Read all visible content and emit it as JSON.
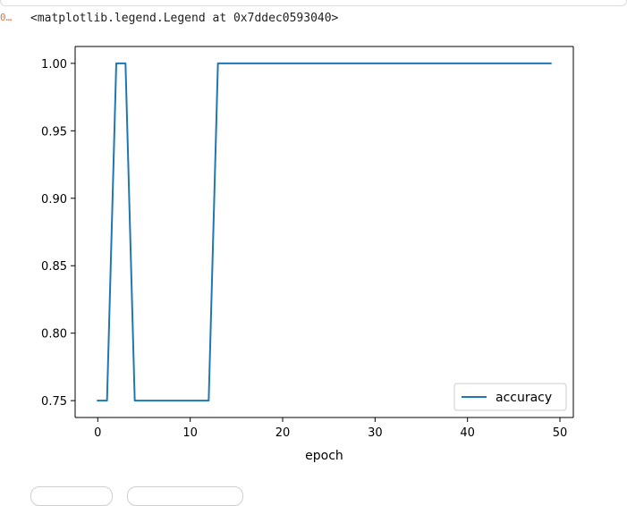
{
  "cell": {
    "execution_count": "0…",
    "output_text": "<matplotlib.legend.Legend at 0x7ddec0593040>"
  },
  "chart_data": {
    "type": "line",
    "xlabel": "epoch",
    "ylabel": "",
    "xlim": [
      -2.45,
      51.45
    ],
    "ylim": [
      0.7375,
      1.0125
    ],
    "xticks": [
      0,
      10,
      20,
      30,
      40,
      50
    ],
    "xtick_labels": [
      "0",
      "10",
      "20",
      "30",
      "40",
      "50"
    ],
    "yticks": [
      0.75,
      0.8,
      0.85,
      0.9,
      0.95,
      1.0
    ],
    "ytick_labels": [
      "0.75",
      "0.80",
      "0.85",
      "0.90",
      "0.95",
      "1.00"
    ],
    "grid": false,
    "legend_position": "lower right",
    "series": [
      {
        "name": "accuracy",
        "color": "#1f77b4",
        "x": [
          0,
          1,
          2,
          3,
          4,
          5,
          6,
          7,
          8,
          9,
          10,
          11,
          12,
          13,
          14,
          15,
          16,
          17,
          18,
          19,
          20,
          21,
          22,
          23,
          24,
          25,
          26,
          27,
          28,
          29,
          30,
          31,
          32,
          33,
          34,
          35,
          36,
          37,
          38,
          39,
          40,
          41,
          42,
          43,
          44,
          45,
          46,
          47,
          48,
          49
        ],
        "y": [
          0.75,
          0.75,
          1.0,
          1.0,
          0.75,
          0.75,
          0.75,
          0.75,
          0.75,
          0.75,
          0.75,
          0.75,
          0.75,
          1.0,
          1.0,
          1.0,
          1.0,
          1.0,
          1.0,
          1.0,
          1.0,
          1.0,
          1.0,
          1.0,
          1.0,
          1.0,
          1.0,
          1.0,
          1.0,
          1.0,
          1.0,
          1.0,
          1.0,
          1.0,
          1.0,
          1.0,
          1.0,
          1.0,
          1.0,
          1.0,
          1.0,
          1.0,
          1.0,
          1.0,
          1.0,
          1.0,
          1.0,
          1.0,
          1.0,
          1.0
        ]
      }
    ]
  }
}
